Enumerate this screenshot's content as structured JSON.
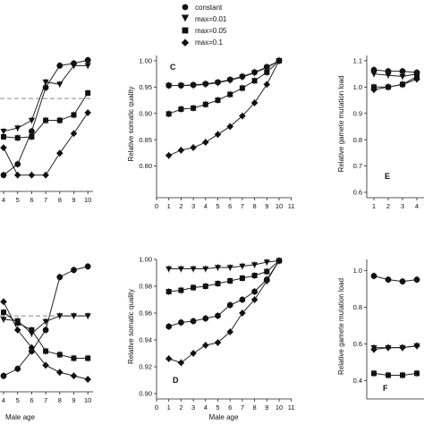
{
  "legend": {
    "entries": [
      {
        "label": "constant",
        "marker": "circle"
      },
      {
        "label": "max=0.01",
        "marker": "triangle-down"
      },
      {
        "label": "max=0.05",
        "marker": "square"
      },
      {
        "label": "max=0.1",
        "marker": "diamond"
      }
    ]
  },
  "colors": {
    "ink": "#111111",
    "axis": "#222222",
    "reference_line": "#888888"
  },
  "chart_data": [
    {
      "id": "A",
      "type": "line",
      "xlabel": "",
      "ylabel": "",
      "x": [
        1,
        2,
        3,
        4,
        5,
        6,
        7,
        8,
        9,
        10
      ],
      "xlim": [
        0.5,
        10.5
      ],
      "ylim": [
        0.88,
        1.005
      ],
      "reference_y": 0.96,
      "x_ticks": [
        "4",
        "5",
        "6",
        "7",
        "8",
        "9",
        "10"
      ],
      "series": [
        {
          "name": "constant",
          "marker": "circle",
          "values": [
            0.89,
            0.89,
            0.89,
            0.89,
            0.9,
            0.93,
            0.97,
            0.99,
            0.992,
            0.995
          ]
        },
        {
          "name": "max=0.01",
          "marker": "triangle-down",
          "values": [
            0.93,
            0.93,
            0.93,
            0.93,
            0.933,
            0.94,
            0.975,
            0.973,
            0.99,
            0.99
          ]
        },
        {
          "name": "max=0.05",
          "marker": "square",
          "values": [
            0.925,
            0.925,
            0.925,
            0.925,
            0.924,
            0.925,
            0.94,
            0.94,
            0.945,
            0.965
          ]
        },
        {
          "name": "max=0.1",
          "marker": "diamond",
          "values": [
            0.915,
            0.915,
            0.915,
            0.915,
            0.89,
            0.89,
            0.89,
            0.91,
            0.928,
            0.947
          ]
        }
      ]
    },
    {
      "id": "C",
      "type": "line",
      "xlabel": "",
      "ylabel": "Relative somatic quality",
      "x": [
        1,
        2,
        3,
        4,
        5,
        6,
        7,
        8,
        9,
        10
      ],
      "xlim": [
        0,
        11
      ],
      "ylim": [
        0.75,
        1.01
      ],
      "y_ticks": [
        0.8,
        0.85,
        0.9,
        0.95,
        1.0
      ],
      "y_tick_labels": [
        "0.80",
        "0.85",
        "0.90",
        "0.95",
        "1.00"
      ],
      "x_ticks": [
        "0",
        "1",
        "2",
        "3",
        "4",
        "5",
        "6",
        "7",
        "8",
        "9",
        "10",
        "11"
      ],
      "series": [
        {
          "name": "constant",
          "marker": "circle",
          "values": [
            0.953,
            0.953,
            0.954,
            0.956,
            0.959,
            0.964,
            0.97,
            0.978,
            0.988,
            1.0
          ]
        },
        {
          "name": "max=0.01",
          "marker": "triangle-down",
          "values": [
            0.953,
            0.953,
            0.953,
            0.955,
            0.958,
            0.963,
            0.969,
            0.977,
            0.987,
            1.0
          ]
        },
        {
          "name": "max=0.05",
          "marker": "square",
          "values": [
            0.899,
            0.908,
            0.91,
            0.917,
            0.925,
            0.936,
            0.948,
            0.962,
            0.978,
            1.0
          ]
        },
        {
          "name": "max=0.1",
          "marker": "diamond",
          "values": [
            0.82,
            0.83,
            0.835,
            0.845,
            0.86,
            0.875,
            0.895,
            0.92,
            0.955,
            1.0
          ]
        }
      ]
    },
    {
      "id": "E",
      "type": "line",
      "xlabel": "",
      "ylabel": "Relative gamete mutation load",
      "x": [
        1,
        2,
        3,
        4,
        5
      ],
      "xlim": [
        0.5,
        5.4
      ],
      "ylim": [
        0.6,
        1.12
      ],
      "y_ticks": [
        0.6,
        0.7,
        0.8,
        0.9,
        1.0,
        1.1
      ],
      "y_tick_labels": [
        "0.6",
        "0.7",
        "0.8",
        "0.9",
        "1.0",
        "1.1"
      ],
      "x_ticks": [
        "1",
        "2",
        "3",
        "4"
      ],
      "series": [
        {
          "name": "constant",
          "marker": "circle",
          "values": [
            1.065,
            1.06,
            1.06,
            1.055,
            1.045
          ]
        },
        {
          "name": "max=0.01",
          "marker": "triangle-down",
          "values": [
            1.05,
            1.045,
            1.04,
            1.05,
            1.06
          ]
        },
        {
          "name": "max=0.05",
          "marker": "square",
          "values": [
            1.0,
            1.0,
            1.01,
            1.04,
            1.05
          ]
        },
        {
          "name": "max=0.1",
          "marker": "diamond",
          "values": [
            0.99,
            1.0,
            1.01,
            1.03,
            1.045
          ]
        }
      ]
    },
    {
      "id": "B",
      "type": "line",
      "xlabel": "Male age",
      "ylabel": "",
      "x": [
        1,
        2,
        3,
        4,
        5,
        6,
        7,
        8,
        9,
        10
      ],
      "xlim": [
        0.5,
        10.5
      ],
      "ylim": [
        0.9,
        1.08
      ],
      "reference_y": 1.0,
      "x_ticks": [
        "4",
        "5",
        "6",
        "7",
        "8",
        "9",
        "10"
      ],
      "series": [
        {
          "name": "constant",
          "marker": "circle",
          "values": [
            0.91,
            0.91,
            0.91,
            0.915,
            0.925,
            0.95,
            0.98,
            1.055,
            1.065,
            1.07
          ]
        },
        {
          "name": "max=0.01",
          "marker": "triangle-down",
          "values": [
            1.0,
            1.0,
            1.0,
            0.995,
            0.993,
            0.975,
            0.992,
            1.0,
            1.0,
            1.0
          ]
        },
        {
          "name": "max=0.05",
          "marker": "square",
          "values": [
            1.01,
            1.01,
            1.01,
            1.005,
            0.99,
            0.98,
            0.95,
            0.945,
            0.94,
            0.94
          ]
        },
        {
          "name": "max=0.1",
          "marker": "diamond",
          "values": [
            1.04,
            1.04,
            1.04,
            1.02,
            0.98,
            0.955,
            0.93,
            0.92,
            0.915,
            0.91
          ]
        }
      ]
    },
    {
      "id": "D",
      "type": "line",
      "xlabel": "Male age",
      "ylabel": "Relative somatic quality",
      "x": [
        1,
        2,
        3,
        4,
        5,
        6,
        7,
        8,
        9,
        10
      ],
      "xlim": [
        0,
        11
      ],
      "ylim": [
        0.9,
        1.0
      ],
      "y_ticks": [
        0.9,
        0.92,
        0.94,
        0.96,
        0.98,
        1.0
      ],
      "y_tick_labels": [
        "0.90",
        "0.92",
        "0.94",
        "0.96",
        "0.98",
        "1.00"
      ],
      "x_ticks": [
        "0",
        "1",
        "2",
        "3",
        "4",
        "5",
        "6",
        "7",
        "8",
        "9",
        "10",
        "11"
      ],
      "series": [
        {
          "name": "constant",
          "marker": "circle",
          "values": [
            0.95,
            0.953,
            0.954,
            0.956,
            0.958,
            0.966,
            0.97,
            0.976,
            0.985,
            0.999
          ]
        },
        {
          "name": "max=0.01",
          "marker": "triangle-down",
          "values": [
            0.993,
            0.993,
            0.993,
            0.993,
            0.994,
            0.994,
            0.995,
            0.996,
            0.998,
            0.999
          ]
        },
        {
          "name": "max=0.05",
          "marker": "square",
          "values": [
            0.976,
            0.977,
            0.979,
            0.98,
            0.982,
            0.984,
            0.986,
            0.988,
            0.991,
            0.999
          ]
        },
        {
          "name": "max=0.1",
          "marker": "diamond",
          "values": [
            0.926,
            0.923,
            0.93,
            0.936,
            0.938,
            0.946,
            0.96,
            0.97,
            0.984,
            0.999
          ]
        }
      ]
    },
    {
      "id": "F",
      "type": "line",
      "xlabel": "",
      "ylabel": "Relative gamete mutation load",
      "x": [
        1,
        2,
        3,
        4,
        5
      ],
      "xlim": [
        0.5,
        5.4
      ],
      "ylim": [
        0.33,
        1.06
      ],
      "y_ticks": [
        0.4,
        0.6,
        0.8,
        1.0
      ],
      "y_tick_labels": [
        "0.4",
        "0.6",
        "0.8",
        "1.0"
      ],
      "x_ticks": [],
      "series": [
        {
          "name": "constant",
          "marker": "circle",
          "values": [
            0.97,
            0.95,
            0.94,
            0.95,
            0.92
          ]
        },
        {
          "name": "max=0.01",
          "marker": "triangle-down",
          "values": [
            0.58,
            0.58,
            0.58,
            0.59,
            0.6
          ]
        },
        {
          "name": "max=0.05",
          "marker": "square",
          "values": [
            0.44,
            0.43,
            0.43,
            0.44,
            0.46
          ]
        },
        {
          "name": "max=0.1",
          "marker": "diamond",
          "values": [
            0.57,
            0.58,
            0.58,
            0.59,
            0.6
          ]
        }
      ]
    }
  ]
}
